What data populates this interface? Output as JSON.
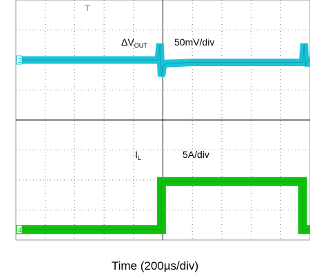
{
  "chart_data": {
    "type": "line",
    "xlabel": "Time (200µs/div)",
    "grid": true,
    "divisions": {
      "x": 10,
      "y": 8
    },
    "trigger_marker": "T",
    "series": [
      {
        "name": "ΔVOUT",
        "label_main": "ΔV",
        "label_sub": "OUT",
        "scale": "50mV/div",
        "channel": "2",
        "color": "#19c3d8",
        "unit": "div",
        "x": [
          0,
          4.85,
          4.9,
          4.95,
          5.0,
          5.1,
          6.0,
          9.75,
          9.8,
          9.85,
          9.9,
          10
        ],
        "y": [
          6.0,
          6.0,
          6.55,
          5.45,
          5.8,
          5.88,
          5.92,
          5.92,
          6.55,
          5.8,
          5.98,
          6.0
        ]
      },
      {
        "name": "IL",
        "label_main": "I",
        "label_sub": "L",
        "scale": "5A/div",
        "channel": "4",
        "color": "#10c010",
        "unit": "div",
        "x": [
          0,
          4.95,
          4.95,
          9.75,
          9.75,
          10
        ],
        "y": [
          0.35,
          0.35,
          1.95,
          1.95,
          0.35,
          0.35
        ]
      }
    ]
  }
}
